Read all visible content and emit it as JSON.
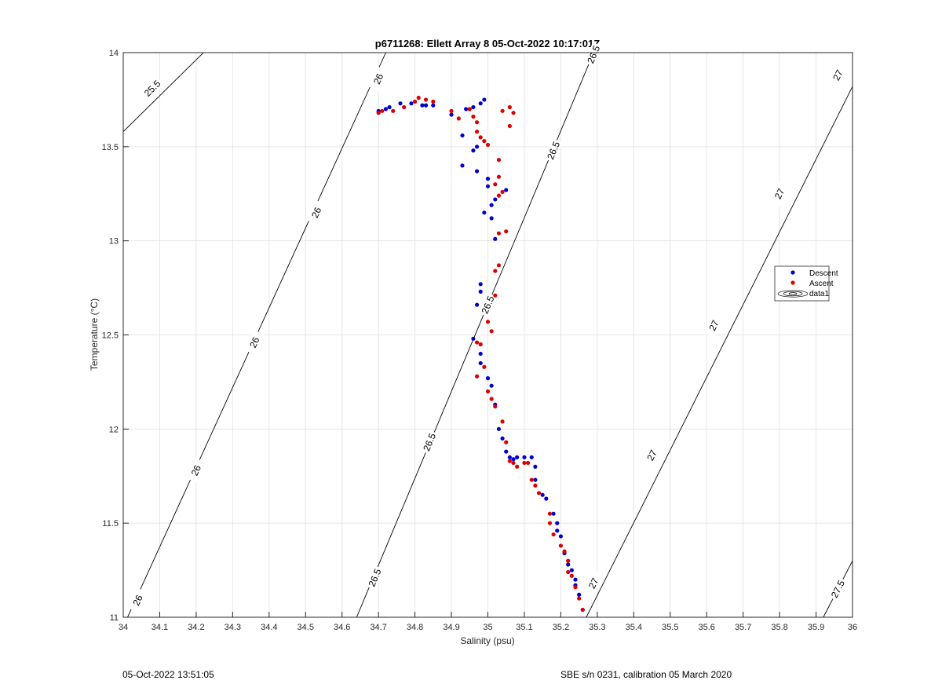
{
  "chart_data": {
    "type": "scatter",
    "title": "p6711268: Ellett Array 8 05-Oct-2022 10:17:01Z",
    "xlabel": "Salinity (psu)",
    "ylabel": "Temperature (°C)",
    "xlim": [
      34,
      36
    ],
    "ylim": [
      11,
      14
    ],
    "xticks": [
      "34",
      "34.1",
      "34.2",
      "34.3",
      "34.4",
      "34.5",
      "34.6",
      "34.7",
      "34.8",
      "34.9",
      "35",
      "35.1",
      "35.2",
      "35.3",
      "35.4",
      "35.5",
      "35.6",
      "35.7",
      "35.8",
      "35.9",
      "36"
    ],
    "yticks": [
      "11",
      "11.5",
      "12",
      "12.5",
      "13",
      "13.5",
      "14"
    ],
    "grid": true,
    "legend_position": "right",
    "legend": [
      "Descent",
      "Ascent",
      "data1"
    ],
    "series": [
      {
        "name": "Descent",
        "color": "#0000cc",
        "points": [
          [
            34.7,
            13.69
          ],
          [
            34.72,
            13.7
          ],
          [
            34.73,
            13.71
          ],
          [
            34.76,
            13.73
          ],
          [
            34.79,
            13.73
          ],
          [
            34.82,
            13.72
          ],
          [
            34.83,
            13.72
          ],
          [
            34.85,
            13.72
          ],
          [
            34.9,
            13.67
          ],
          [
            34.94,
            13.7
          ],
          [
            34.96,
            13.71
          ],
          [
            34.98,
            13.73
          ],
          [
            34.99,
            13.75
          ],
          [
            34.93,
            13.56
          ],
          [
            34.96,
            13.48
          ],
          [
            34.97,
            13.5
          ],
          [
            34.93,
            13.4
          ],
          [
            34.97,
            13.37
          ],
          [
            35.0,
            13.33
          ],
          [
            35.0,
            13.29
          ],
          [
            35.05,
            13.27
          ],
          [
            35.02,
            13.22
          ],
          [
            35.01,
            13.19
          ],
          [
            34.99,
            13.15
          ],
          [
            35.01,
            13.12
          ],
          [
            35.02,
            13.01
          ],
          [
            34.98,
            12.77
          ],
          [
            34.98,
            12.73
          ],
          [
            34.97,
            12.66
          ],
          [
            34.96,
            12.48
          ],
          [
            34.98,
            12.4
          ],
          [
            34.98,
            12.35
          ],
          [
            35.0,
            12.27
          ],
          [
            35.01,
            12.23
          ],
          [
            35.02,
            12.13
          ],
          [
            35.03,
            12.0
          ],
          [
            35.04,
            11.95
          ],
          [
            35.05,
            11.88
          ],
          [
            35.06,
            11.85
          ],
          [
            35.07,
            11.84
          ],
          [
            35.08,
            11.85
          ],
          [
            35.1,
            11.85
          ],
          [
            35.12,
            11.85
          ],
          [
            35.13,
            11.8
          ],
          [
            35.13,
            11.73
          ],
          [
            35.15,
            11.65
          ],
          [
            35.16,
            11.63
          ],
          [
            35.18,
            11.55
          ],
          [
            35.19,
            11.5
          ],
          [
            35.19,
            11.46
          ],
          [
            35.2,
            11.43
          ],
          [
            35.21,
            11.34
          ],
          [
            35.22,
            11.28
          ],
          [
            35.23,
            11.25
          ],
          [
            35.24,
            11.2
          ],
          [
            35.24,
            11.17
          ],
          [
            35.25,
            11.12
          ],
          [
            35.26,
            11.04
          ]
        ]
      },
      {
        "name": "Ascent",
        "color": "#dd0000",
        "points": [
          [
            34.7,
            13.68
          ],
          [
            34.71,
            13.69
          ],
          [
            34.74,
            13.69
          ],
          [
            34.77,
            13.71
          ],
          [
            34.8,
            13.74
          ],
          [
            34.81,
            13.76
          ],
          [
            34.83,
            13.75
          ],
          [
            34.85,
            13.74
          ],
          [
            34.9,
            13.69
          ],
          [
            34.92,
            13.65
          ],
          [
            34.95,
            13.7
          ],
          [
            34.96,
            13.66
          ],
          [
            34.97,
            13.63
          ],
          [
            34.97,
            13.58
          ],
          [
            34.98,
            13.55
          ],
          [
            34.99,
            13.53
          ],
          [
            35.0,
            13.51
          ],
          [
            35.04,
            13.69
          ],
          [
            35.06,
            13.71
          ],
          [
            35.07,
            13.68
          ],
          [
            35.06,
            13.61
          ],
          [
            35.03,
            13.43
          ],
          [
            35.03,
            13.34
          ],
          [
            35.02,
            13.3
          ],
          [
            35.04,
            13.26
          ],
          [
            35.03,
            13.24
          ],
          [
            35.05,
            13.05
          ],
          [
            35.03,
            13.04
          ],
          [
            35.03,
            12.87
          ],
          [
            35.02,
            12.84
          ],
          [
            35.02,
            12.71
          ],
          [
            35.0,
            12.57
          ],
          [
            35.01,
            12.52
          ],
          [
            34.97,
            12.46
          ],
          [
            34.98,
            12.45
          ],
          [
            34.99,
            12.33
          ],
          [
            34.97,
            12.28
          ],
          [
            35.0,
            12.2
          ],
          [
            35.01,
            12.16
          ],
          [
            35.02,
            12.12
          ],
          [
            35.04,
            12.04
          ],
          [
            35.05,
            11.93
          ],
          [
            35.06,
            11.83
          ],
          [
            35.07,
            11.82
          ],
          [
            35.08,
            11.8
          ],
          [
            35.1,
            11.82
          ],
          [
            35.11,
            11.82
          ],
          [
            35.12,
            11.73
          ],
          [
            35.13,
            11.7
          ],
          [
            35.14,
            11.66
          ],
          [
            35.17,
            11.55
          ],
          [
            35.17,
            11.5
          ],
          [
            35.18,
            11.44
          ],
          [
            35.2,
            11.38
          ],
          [
            35.21,
            11.35
          ],
          [
            35.22,
            11.3
          ],
          [
            35.22,
            11.24
          ],
          [
            35.23,
            11.22
          ],
          [
            35.24,
            11.16
          ],
          [
            35.25,
            11.1
          ],
          [
            35.26,
            11.04
          ]
        ]
      }
    ],
    "contours": [
      {
        "label": "25.5",
        "points": [
          [
            34.0,
            13.58
          ],
          [
            34.22,
            14.0
          ]
        ],
        "label_at": [
          [
            34.08,
            13.81
          ]
        ]
      },
      {
        "label": "26",
        "points": [
          [
            34.0,
            10.95
          ],
          [
            34.72,
            14.0
          ]
        ],
        "label_at": [
          [
            34.04,
            11.09
          ],
          [
            34.2,
            11.78
          ],
          [
            34.36,
            12.46
          ],
          [
            34.53,
            13.15
          ],
          [
            34.7,
            13.86
          ]
        ]
      },
      {
        "label": "26.5",
        "points": [
          [
            34.64,
            11.0
          ],
          [
            35.29,
            14.0
          ]
        ],
        "label_at": [
          [
            34.69,
            11.21
          ],
          [
            34.84,
            11.93
          ],
          [
            35.0,
            12.66
          ],
          [
            35.18,
            13.48
          ],
          [
            35.29,
            13.99
          ]
        ]
      },
      {
        "label": "27",
        "points": [
          [
            35.27,
            11.0
          ],
          [
            36.0,
            13.82
          ]
        ],
        "label_at": [
          [
            35.29,
            11.18
          ],
          [
            35.45,
            11.86
          ],
          [
            35.62,
            12.55
          ],
          [
            35.8,
            13.25
          ],
          [
            35.96,
            13.88
          ]
        ]
      },
      {
        "label": "27.5",
        "points": [
          [
            35.92,
            11.0
          ],
          [
            36.0,
            11.3
          ]
        ],
        "label_at": [
          [
            35.96,
            11.15
          ]
        ]
      }
    ]
  },
  "footer": {
    "timestamp": "05-Oct-2022 13:51:05",
    "calibration": "SBE s/n 0231, calibration 05 March 2020"
  }
}
